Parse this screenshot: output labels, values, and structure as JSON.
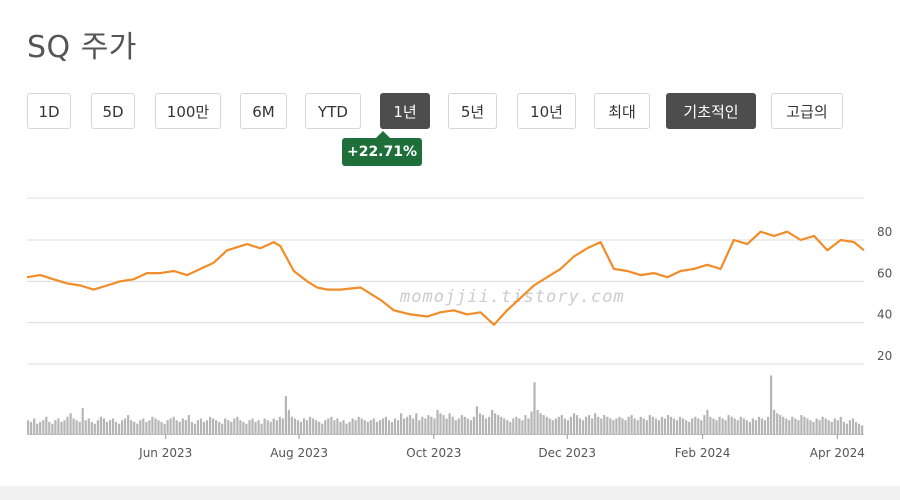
{
  "title": "SQ 주가",
  "range_buttons": [
    {
      "label": "1D",
      "active": false
    },
    {
      "label": "5D",
      "active": false
    },
    {
      "label": "100만",
      "active": false
    },
    {
      "label": "6M",
      "active": false
    },
    {
      "label": "YTD",
      "active": false
    },
    {
      "label": "1년",
      "active": true
    },
    {
      "label": "5년",
      "active": false
    },
    {
      "label": "10년",
      "active": false
    },
    {
      "label": "최대",
      "active": false
    },
    {
      "label": "기초적인",
      "active": true
    },
    {
      "label": "고급의",
      "active": false
    }
  ],
  "change_badge": "+22.71%",
  "watermark": "momojjii.tistory.com",
  "colors": {
    "line": "#f28c28",
    "volume": "#b5b5b5",
    "grid": "#dcdcdc",
    "badge": "#1e6f3a",
    "active_button": "#4d4d4d"
  },
  "chart_data": {
    "type": "line",
    "y_ticks": [
      "80",
      "60",
      "40",
      "20"
    ],
    "ylim": [
      0,
      100
    ],
    "x_tick_labels": [
      "Jun 2023",
      "Aug 2023",
      "Oct 2023",
      "Dec 2023",
      "Feb 2024",
      "Apr 2024"
    ],
    "x_ticks": [
      2.08,
      4.08,
      6.1,
      8.1,
      10.13,
      12.15
    ],
    "xlim": [
      0.0,
      12.55
    ],
    "series": [
      {
        "x": [
          0.0,
          0.2,
          0.4,
          0.6,
          0.8,
          1.0,
          1.2,
          1.4,
          1.6,
          1.8,
          2.0,
          2.2,
          2.4,
          2.6,
          2.8,
          3.0,
          3.2,
          3.3,
          3.5,
          3.7,
          3.8,
          4.0,
          4.2,
          4.35,
          4.5,
          4.7,
          5.0,
          5.3,
          5.5,
          5.75,
          6.0,
          6.2,
          6.4,
          6.6,
          6.8,
          7.0,
          7.2,
          7.4,
          7.6,
          7.8,
          8.0,
          8.2,
          8.4,
          8.6,
          8.8,
          9.0,
          9.2,
          9.4,
          9.6,
          9.8,
          10.0,
          10.2,
          10.4,
          10.6,
          10.8,
          11.0,
          11.2,
          11.4,
          11.6,
          11.8,
          12.0,
          12.2,
          12.4,
          12.55
        ],
        "values": [
          62,
          63,
          61,
          59,
          58,
          56,
          58,
          60,
          61,
          64,
          64,
          65,
          63,
          66,
          69,
          75,
          77,
          78,
          76,
          79,
          77,
          65,
          60,
          57,
          56,
          56,
          57,
          51,
          46,
          44,
          43,
          45,
          46,
          44,
          45,
          39,
          46,
          52,
          58,
          62,
          66,
          72,
          76,
          79,
          66,
          65,
          63,
          64,
          62,
          65,
          66,
          68,
          66,
          80,
          78,
          84,
          82,
          84,
          80,
          82,
          75,
          80,
          79,
          75
        ]
      }
    ],
    "volume_values": [
      8,
      7,
      9,
      6,
      7,
      8,
      10,
      7,
      6,
      8,
      9,
      7,
      8,
      10,
      12,
      9,
      8,
      7,
      15,
      8,
      9,
      7,
      6,
      8,
      10,
      9,
      7,
      8,
      9,
      7,
      6,
      8,
      9,
      11,
      8,
      7,
      6,
      8,
      9,
      7,
      8,
      10,
      9,
      8,
      7,
      6,
      8,
      9,
      10,
      8,
      7,
      9,
      8,
      11,
      7,
      6,
      8,
      9,
      7,
      8,
      10,
      9,
      8,
      7,
      6,
      9,
      8,
      7,
      9,
      10,
      8,
      7,
      6,
      8,
      9,
      7,
      8,
      6,
      9,
      8,
      7,
      9,
      8,
      10,
      9,
      22,
      14,
      10,
      9,
      8,
      7,
      9,
      8,
      10,
      9,
      8,
      7,
      6,
      8,
      9,
      10,
      8,
      9,
      7,
      8,
      6,
      7,
      9,
      8,
      10,
      9,
      8,
      7,
      8,
      9,
      7,
      8,
      9,
      10,
      8,
      7,
      9,
      8,
      12,
      9,
      10,
      11,
      9,
      12,
      8,
      10,
      9,
      11,
      10,
      9,
      14,
      12,
      11,
      9,
      12,
      10,
      8,
      9,
      11,
      10,
      9,
      8,
      10,
      16,
      12,
      11,
      9,
      10,
      14,
      12,
      11,
      10,
      9,
      8,
      7,
      9,
      10,
      9,
      8,
      11,
      9,
      13,
      30,
      14,
      12,
      11,
      10,
      9,
      8,
      9,
      10,
      11,
      9,
      8,
      10,
      12,
      11,
      9,
      8,
      10,
      11,
      9,
      12,
      10,
      9,
      11,
      10,
      9,
      8,
      9,
      10,
      9,
      8,
      10,
      11,
      9,
      8,
      10,
      9,
      8,
      11,
      10,
      9,
      8,
      10,
      9,
      11,
      10,
      9,
      8,
      10,
      9,
      8,
      7,
      9,
      10,
      9,
      8,
      11,
      14,
      10,
      9,
      8,
      10,
      9,
      8,
      11,
      10,
      9,
      8,
      10,
      9,
      8,
      7,
      9,
      8,
      10,
      9,
      8,
      10,
      34,
      14,
      12,
      11,
      10,
      9,
      8,
      10,
      9,
      8,
      11,
      10,
      9,
      8,
      7,
      9,
      8,
      10,
      9,
      8,
      7,
      9,
      8,
      10,
      7,
      6,
      8,
      9,
      7,
      6,
      5
    ],
    "volume_ylim": [
      0,
      36
    ]
  }
}
